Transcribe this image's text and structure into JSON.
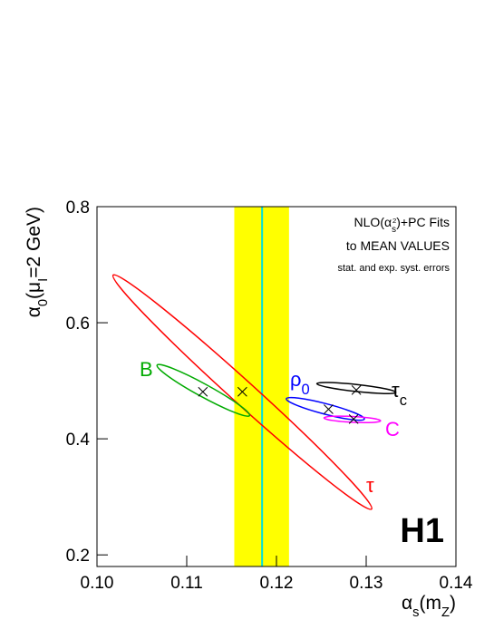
{
  "chart_data": {
    "type": "ellipse",
    "xlabel": [
      "α",
      "s",
      "(m",
      "Z",
      ")"
    ],
    "ylabel": [
      "α",
      "0",
      "(μ",
      "I",
      "=2 GeV)"
    ],
    "annotations": {
      "fit": [
        "NLO(α",
        "s",
        "2",
        ")+PC Fits"
      ],
      "line2": "to MEAN VALUES",
      "line3": "stat. and exp. syst. errors",
      "logo": "H1"
    },
    "xlim": [
      0.1,
      0.14
    ],
    "ylim": [
      0.18,
      0.8
    ],
    "xticks": [
      {
        "value": 0.1,
        "label": "0.10"
      },
      {
        "value": 0.11,
        "label": "0.11"
      },
      {
        "value": 0.12,
        "label": "0.12"
      },
      {
        "value": 0.13,
        "label": "0.13"
      },
      {
        "value": 0.14,
        "label": "0.14"
      }
    ],
    "yticks": [
      0.2,
      0.4,
      0.6,
      0.8
    ],
    "world_average": {
      "value": 0.1184,
      "band": [
        0.1153,
        0.1214
      ],
      "color": "#00e0e0",
      "band_color": "#ffff00"
    },
    "series": [
      {
        "label": "τ",
        "label_sub": "",
        "color": "#ff0000",
        "x": 0.1162,
        "y": 0.481,
        "end1": [
          0.1018,
          0.682
        ],
        "end2": [
          0.1306,
          0.279
        ],
        "minor": 0.02
      },
      {
        "label": "B",
        "label_sub": "",
        "color": "#00aa00",
        "x": 0.1118,
        "y": 0.481,
        "end1": [
          0.1067,
          0.527
        ],
        "end2": [
          0.117,
          0.44
        ],
        "minor": 0.011
      },
      {
        "label": "ρ",
        "label_sub": "0",
        "color": "#0000ff",
        "x": 0.1258,
        "y": 0.451,
        "end1": [
          0.1211,
          0.469
        ],
        "end2": [
          0.1298,
          0.434
        ],
        "minor": 0.009
      },
      {
        "label": "τ",
        "label_sub": "c",
        "color": "#000000",
        "x": 0.1289,
        "y": 0.484,
        "end1": [
          0.1245,
          0.495
        ],
        "end2": [
          0.1333,
          0.48
        ],
        "minor": 0.006
      },
      {
        "label": "C",
        "label_sub": "",
        "color": "#ff00ff",
        "x": 0.1286,
        "y": 0.434,
        "end1": [
          0.1253,
          0.436
        ],
        "end2": [
          0.1316,
          0.431
        ],
        "minor": 0.005
      }
    ]
  }
}
